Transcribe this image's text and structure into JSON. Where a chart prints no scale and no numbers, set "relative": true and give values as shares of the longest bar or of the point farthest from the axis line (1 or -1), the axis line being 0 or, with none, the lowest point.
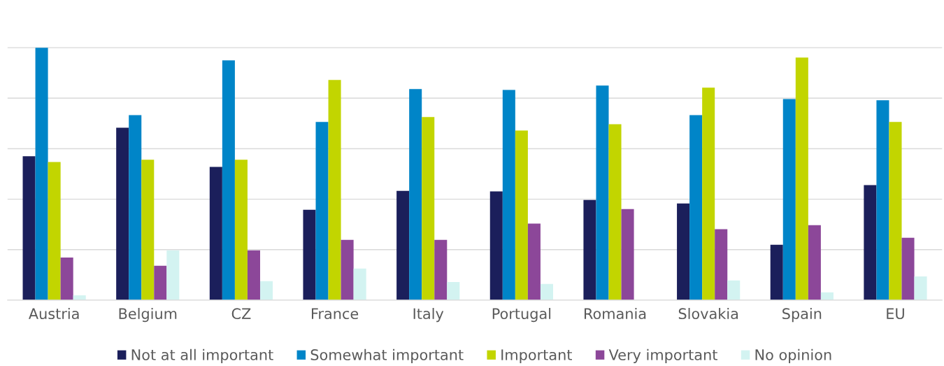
{
  "chart_data": {
    "type": "bar",
    "relative": true,
    "grid": "y",
    "legend": "bottom",
    "categories": [
      "Austria",
      "Belgium",
      "CZ",
      "France",
      "Italy",
      "Portugal",
      "Romania",
      "Slovakia",
      "Spain",
      "EU"
    ],
    "series": [
      {
        "name": "Not at all important",
        "color": "#1b1f5b",
        "values": [
          0.57,
          0.683,
          0.528,
          0.358,
          0.433,
          0.431,
          0.397,
          0.383,
          0.219,
          0.456
        ]
      },
      {
        "name": "Somewhat important",
        "color": "#0085c8",
        "values": [
          1.0,
          0.733,
          0.95,
          0.706,
          0.836,
          0.833,
          0.85,
          0.733,
          0.797,
          0.792
        ]
      },
      {
        "name": "Important",
        "color": "#c2d500",
        "values": [
          0.547,
          0.556,
          0.556,
          0.872,
          0.725,
          0.672,
          0.697,
          0.842,
          0.961,
          0.706
        ]
      },
      {
        "name": "Very important",
        "color": "#8c4799",
        "values": [
          0.169,
          0.136,
          0.197,
          0.239,
          0.239,
          0.303,
          0.361,
          0.281,
          0.297,
          0.247
        ]
      },
      {
        "name": "No opinion",
        "color": "#d3f3f1",
        "values": [
          0.019,
          0.197,
          0.075,
          0.125,
          0.072,
          0.064,
          0,
          0.078,
          0.031,
          0.094
        ]
      }
    ]
  }
}
